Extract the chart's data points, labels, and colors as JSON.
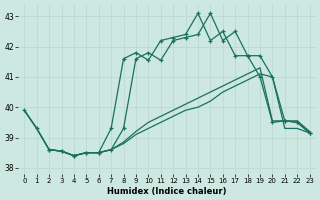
{
  "xlabel": "Humidex (Indice chaleur)",
  "bg_color": "#cce8e0",
  "grid_color": "#b8d8d0",
  "line_color": "#1a7060",
  "xlim": [
    -0.5,
    23.5
  ],
  "ylim": [
    37.8,
    43.4
  ],
  "yticks": [
    38,
    39,
    40,
    41,
    42,
    43
  ],
  "xticks": [
    0,
    1,
    2,
    3,
    4,
    5,
    6,
    7,
    8,
    9,
    10,
    11,
    12,
    13,
    14,
    15,
    16,
    17,
    18,
    19,
    20,
    21,
    22,
    23
  ],
  "line1_x": [
    0,
    1,
    2,
    3,
    4,
    5,
    6,
    7,
    8,
    9,
    10,
    11,
    12,
    13,
    14,
    15,
    16,
    17,
    18,
    19,
    20,
    21,
    22,
    23
  ],
  "line1_y": [
    39.9,
    39.3,
    38.6,
    38.55,
    38.4,
    38.5,
    38.5,
    38.6,
    38.8,
    39.1,
    39.3,
    39.5,
    39.7,
    39.9,
    40.0,
    40.2,
    40.5,
    40.7,
    40.9,
    41.1,
    41.0,
    39.3,
    39.3,
    39.15
  ],
  "line2_x": [
    0,
    1,
    2,
    3,
    4,
    5,
    6,
    7,
    8,
    9,
    10,
    11,
    12,
    13,
    14,
    15,
    16,
    17,
    18,
    19,
    20,
    21,
    22,
    23
  ],
  "line2_y": [
    39.9,
    39.3,
    38.6,
    38.55,
    38.4,
    38.5,
    38.5,
    38.6,
    38.85,
    39.2,
    39.5,
    39.7,
    39.9,
    40.1,
    40.3,
    40.5,
    40.7,
    40.9,
    41.1,
    41.3,
    39.55,
    39.55,
    39.55,
    39.2
  ],
  "line3_x": [
    0,
    1,
    2,
    3,
    4,
    5,
    6,
    7,
    8,
    9,
    10,
    11,
    12,
    13,
    14,
    15,
    16,
    17,
    18,
    19,
    20,
    21,
    22,
    23
  ],
  "line3_y": [
    39.9,
    39.3,
    38.6,
    38.55,
    38.4,
    38.5,
    38.5,
    39.3,
    41.6,
    41.8,
    41.55,
    42.2,
    42.3,
    42.4,
    43.1,
    42.2,
    42.5,
    41.7,
    41.7,
    41.0,
    39.5,
    39.55,
    39.5,
    39.15
  ],
  "line4_x": [
    2,
    3,
    4,
    5,
    6,
    7,
    8,
    9,
    10,
    11,
    12,
    13,
    14,
    15,
    16,
    17,
    18,
    19,
    20,
    21,
    22,
    23
  ],
  "line4_y": [
    38.6,
    38.55,
    38.4,
    38.5,
    38.5,
    38.6,
    39.3,
    41.6,
    41.8,
    41.55,
    42.2,
    42.3,
    42.4,
    43.1,
    42.2,
    42.5,
    41.7,
    41.7,
    41.0,
    39.55,
    39.5,
    39.15
  ],
  "markers_x": [
    0,
    1,
    2,
    3,
    4,
    5,
    6,
    7,
    8,
    9,
    10,
    11,
    12,
    13,
    14,
    15,
    16,
    17,
    18,
    19,
    20,
    21,
    22,
    23
  ],
  "markers3_y": [
    39.9,
    39.3,
    38.6,
    38.55,
    38.4,
    38.5,
    38.5,
    39.3,
    41.6,
    41.8,
    41.55,
    42.2,
    42.3,
    42.4,
    43.1,
    42.2,
    42.5,
    41.7,
    41.7,
    41.0,
    39.5,
    39.55,
    39.5,
    39.15
  ]
}
